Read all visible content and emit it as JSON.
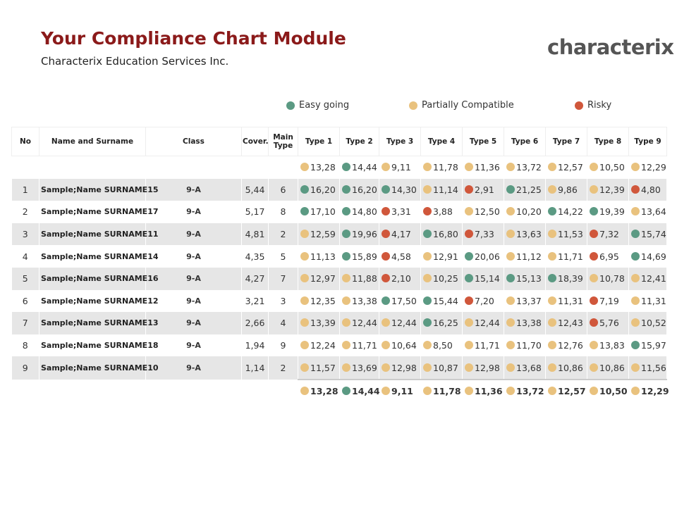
{
  "header": {
    "title": "Your Compliance Chart Module",
    "subtitle": "Characterix Education Services Inc.",
    "logo": "characterix"
  },
  "legend": [
    {
      "label": "Easy going",
      "color": "#5b9a83"
    },
    {
      "label": "Partially Compatible",
      "color": "#e9c27e"
    },
    {
      "label": "Risky",
      "color": "#d0573b"
    }
  ],
  "table": {
    "columns": [
      "No",
      "Name and Surname",
      "Class",
      "Cover.",
      "Main Type",
      "Type 1",
      "Type 2",
      "Type 3",
      "Type 4",
      "Type 5",
      "Type 6",
      "Type 7",
      "Type 8",
      "Type 9"
    ],
    "top_row": {
      "values": [
        "13,28",
        "14,44",
        "9,11",
        "11,78",
        "11,36",
        "13,72",
        "12,57",
        "10,50",
        "12,29"
      ],
      "colors": [
        "#e9c27e",
        "#5b9a83",
        "#e9c27e",
        "#e9c27e",
        "#e9c27e",
        "#e9c27e",
        "#e9c27e",
        "#e9c27e",
        "#e9c27e"
      ]
    },
    "rows": [
      {
        "no": "1",
        "name": "Sample;Name SURNAME15",
        "class": "9-A",
        "cover": "5,44",
        "main_type": "6",
        "values": [
          "16,20",
          "16,20",
          "14,30",
          "11,14",
          "2,91",
          "21,25",
          "9,86",
          "12,39",
          "4,80"
        ],
        "colors": [
          "#5b9a83",
          "#5b9a83",
          "#5b9a83",
          "#e9c27e",
          "#d0573b",
          "#5b9a83",
          "#e9c27e",
          "#e9c27e",
          "#d0573b"
        ]
      },
      {
        "no": "2",
        "name": "Sample;Name SURNAME17",
        "class": "9-A",
        "cover": "5,17",
        "main_type": "8",
        "values": [
          "17,10",
          "14,80",
          "3,31",
          "3,88",
          "12,50",
          "10,20",
          "14,22",
          "19,39",
          "13,64"
        ],
        "colors": [
          "#5b9a83",
          "#5b9a83",
          "#d0573b",
          "#d0573b",
          "#e9c27e",
          "#e9c27e",
          "#5b9a83",
          "#5b9a83",
          "#e9c27e"
        ]
      },
      {
        "no": "3",
        "name": "Sample;Name SURNAME11",
        "class": "9-A",
        "cover": "4,81",
        "main_type": "2",
        "values": [
          "12,59",
          "19,96",
          "4,17",
          "16,80",
          "7,33",
          "13,63",
          "11,53",
          "7,32",
          "15,74"
        ],
        "colors": [
          "#e9c27e",
          "#5b9a83",
          "#d0573b",
          "#5b9a83",
          "#d0573b",
          "#e9c27e",
          "#e9c27e",
          "#d0573b",
          "#5b9a83"
        ]
      },
      {
        "no": "4",
        "name": "Sample;Name SURNAME14",
        "class": "9-A",
        "cover": "4,35",
        "main_type": "5",
        "values": [
          "11,13",
          "15,89",
          "4,58",
          "12,91",
          "20,06",
          "11,12",
          "11,71",
          "6,95",
          "14,69"
        ],
        "colors": [
          "#e9c27e",
          "#5b9a83",
          "#d0573b",
          "#e9c27e",
          "#5b9a83",
          "#e9c27e",
          "#e9c27e",
          "#d0573b",
          "#5b9a83"
        ]
      },
      {
        "no": "5",
        "name": "Sample;Name SURNAME16",
        "class": "9-A",
        "cover": "4,27",
        "main_type": "7",
        "values": [
          "12,97",
          "11,88",
          "2,10",
          "10,25",
          "15,14",
          "15,13",
          "18,39",
          "10,78",
          "12,41"
        ],
        "colors": [
          "#e9c27e",
          "#e9c27e",
          "#d0573b",
          "#e9c27e",
          "#5b9a83",
          "#5b9a83",
          "#5b9a83",
          "#e9c27e",
          "#e9c27e"
        ]
      },
      {
        "no": "6",
        "name": "Sample;Name SURNAME12",
        "class": "9-A",
        "cover": "3,21",
        "main_type": "3",
        "values": [
          "12,35",
          "13,38",
          "17,50",
          "15,44",
          "7,20",
          "13,37",
          "11,31",
          "7,19",
          "11,31"
        ],
        "colors": [
          "#e9c27e",
          "#e9c27e",
          "#5b9a83",
          "#5b9a83",
          "#d0573b",
          "#e9c27e",
          "#e9c27e",
          "#d0573b",
          "#e9c27e"
        ]
      },
      {
        "no": "7",
        "name": "Sample;Name SURNAME13",
        "class": "9-A",
        "cover": "2,66",
        "main_type": "4",
        "values": [
          "13,39",
          "12,44",
          "12,44",
          "16,25",
          "12,44",
          "13,38",
          "12,43",
          "5,76",
          "10,52"
        ],
        "colors": [
          "#e9c27e",
          "#e9c27e",
          "#e9c27e",
          "#5b9a83",
          "#e9c27e",
          "#e9c27e",
          "#e9c27e",
          "#d0573b",
          "#e9c27e"
        ]
      },
      {
        "no": "8",
        "name": "Sample;Name SURNAME18",
        "class": "9-A",
        "cover": "1,94",
        "main_type": "9",
        "values": [
          "12,24",
          "11,71",
          "10,64",
          "8,50",
          "11,71",
          "11,70",
          "12,76",
          "13,83",
          "15,97"
        ],
        "colors": [
          "#e9c27e",
          "#e9c27e",
          "#e9c27e",
          "#e9c27e",
          "#e9c27e",
          "#e9c27e",
          "#e9c27e",
          "#e9c27e",
          "#5b9a83"
        ]
      },
      {
        "no": "9",
        "name": "Sample;Name SURNAME10",
        "class": "9-A",
        "cover": "1,14",
        "main_type": "2",
        "values": [
          "11,57",
          "13,69",
          "12,98",
          "10,87",
          "12,98",
          "13,68",
          "10,86",
          "10,86",
          "11,56"
        ],
        "colors": [
          "#e9c27e",
          "#e9c27e",
          "#e9c27e",
          "#e9c27e",
          "#e9c27e",
          "#e9c27e",
          "#e9c27e",
          "#e9c27e",
          "#e9c27e"
        ]
      }
    ],
    "bottom_row": {
      "values": [
        "13,28",
        "14,44",
        "9,11",
        "11,78",
        "11,36",
        "13,72",
        "12,57",
        "10,50",
        "12,29"
      ],
      "colors": [
        "#e9c27e",
        "#5b9a83",
        "#e9c27e",
        "#e9c27e",
        "#e9c27e",
        "#e9c27e",
        "#e9c27e",
        "#e9c27e",
        "#e9c27e"
      ]
    }
  }
}
